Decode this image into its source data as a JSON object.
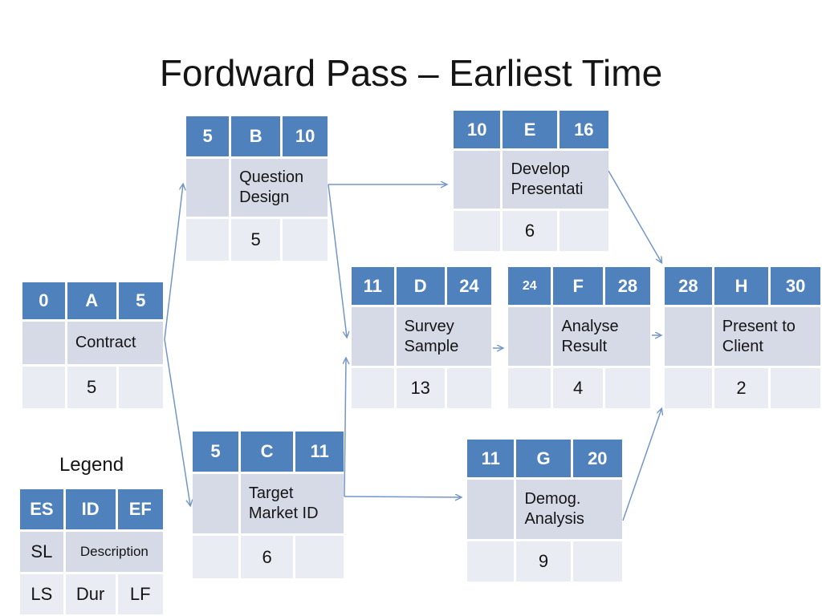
{
  "slide": {
    "title": "Fordward Pass – Earliest Time"
  },
  "nodes": {
    "A": {
      "es": "0",
      "id": "A",
      "ef": "5",
      "desc": "Contract",
      "dur": "5"
    },
    "B": {
      "es": "5",
      "id": "B",
      "ef": "10",
      "desc": "Question Design",
      "dur": "5"
    },
    "C": {
      "es": "5",
      "id": "C",
      "ef": "11",
      "desc": "Target Market ID",
      "dur": "6"
    },
    "D": {
      "es": "11",
      "id": "D",
      "ef": "24",
      "desc": "Survey Sample",
      "dur": "13"
    },
    "E": {
      "es": "10",
      "id": "E",
      "ef": "16",
      "desc": "Develop Presentati",
      "dur": "6"
    },
    "F": {
      "es": "24",
      "id": "F",
      "ef": "28",
      "desc": "Analyse Result",
      "dur": "4"
    },
    "G": {
      "es": "11",
      "id": "G",
      "ef": "20",
      "desc": "Demog. Analysis",
      "dur": "9"
    },
    "H": {
      "es": "28",
      "id": "H",
      "ef": "30",
      "desc": "Present to Client",
      "dur": "2"
    }
  },
  "connections": [
    {
      "from": "A",
      "to": "B"
    },
    {
      "from": "A",
      "to": "C"
    },
    {
      "from": "B",
      "to": "E"
    },
    {
      "from": "B",
      "to": "D"
    },
    {
      "from": "C",
      "to": "D"
    },
    {
      "from": "C",
      "to": "G"
    },
    {
      "from": "D",
      "to": "F"
    },
    {
      "from": "F",
      "to": "H"
    },
    {
      "from": "E",
      "to": "H"
    },
    {
      "from": "G",
      "to": "H"
    }
  ],
  "legend": {
    "title": "Legend",
    "es": "ES",
    "id": "ID",
    "ef": "EF",
    "sl": "SL",
    "description": "Description",
    "ls": "LS",
    "dur": "Dur",
    "lf": "LF"
  },
  "colors": {
    "header_blue": "#4f81bd",
    "row2_fill": "#d5dae6",
    "row3_fill": "#eaecf3",
    "arrow": "#7396c8",
    "text": "#151515"
  }
}
